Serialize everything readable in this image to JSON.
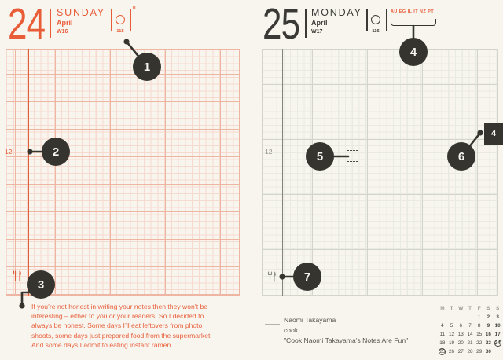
{
  "pages": {
    "left": {
      "day_number": "24",
      "weekday": "SUNDAY",
      "month": "April",
      "week": "W16",
      "day_of_year": "115",
      "holiday_codes": "IL",
      "noon_label": "12",
      "note_text": "If you’re not honest in writing your notes then they won’t be interesting – either to you or your readers. So I decided to always be honest. Some days I’ll eat leftovers from photo shoots, some days just prepared food from the supermarket. And some days I admit to eating instant ramen."
    },
    "right": {
      "day_number": "25",
      "weekday": "MONDAY",
      "month": "April",
      "week": "W17",
      "day_of_year": "116",
      "holiday_codes": "AU EG IL IT NZ PT",
      "noon_label": "12",
      "month_tab": "4",
      "credit_name": "Naomi Takayama",
      "credit_role": "cook",
      "credit_work": "\"Cook Naomi Takayama’s Notes Are Fun\""
    }
  },
  "callouts": [
    "1",
    "2",
    "3",
    "4",
    "5",
    "6",
    "7"
  ],
  "mini_calendar": {
    "header": [
      "M",
      "T",
      "W",
      "T",
      "F",
      "S",
      "S"
    ],
    "weeks": [
      [
        "",
        "",
        "",
        "",
        "1",
        "2",
        "3"
      ],
      [
        "4",
        "5",
        "6",
        "7",
        "8",
        "9",
        "10"
      ],
      [
        "11",
        "12",
        "13",
        "14",
        "15",
        "16",
        "17"
      ],
      [
        "18",
        "19",
        "20",
        "21",
        "22",
        "23",
        "24"
      ],
      [
        "25",
        "26",
        "27",
        "28",
        "29",
        "30",
        ""
      ]
    ],
    "circled": [
      "24",
      "25"
    ]
  },
  "colors": {
    "accent_red": "#e85c38",
    "ink_dark": "#3a3935",
    "callout_bg": "#35342f"
  }
}
